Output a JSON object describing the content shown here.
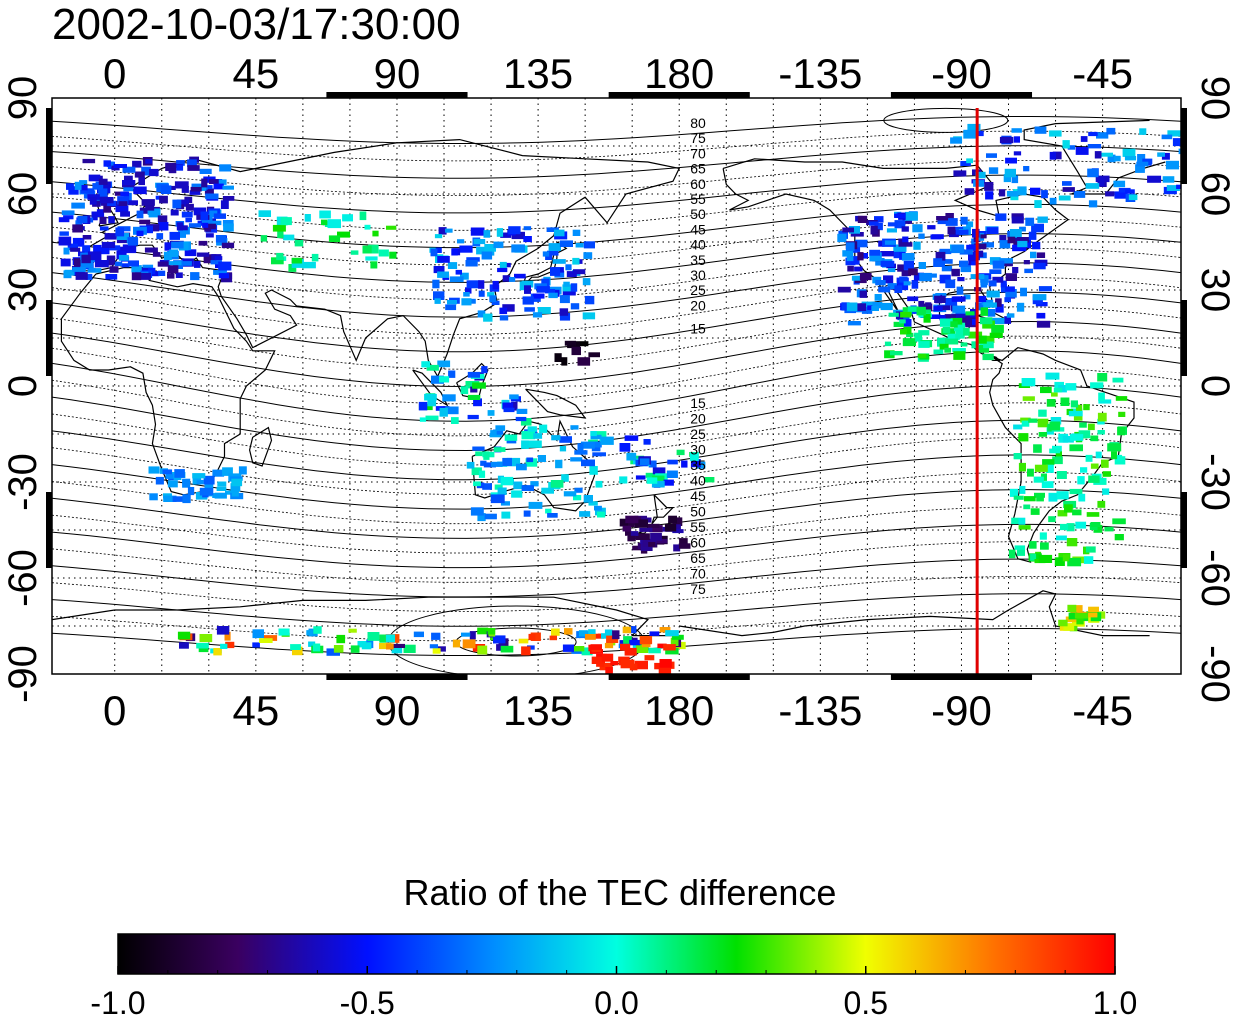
{
  "header": {
    "timestamp": "2002-10-03/17:30:00"
  },
  "map": {
    "lon_ticks": [
      "0",
      "45",
      "90",
      "135",
      "180",
      "-135",
      "-90",
      "-45"
    ],
    "lat_ticks": [
      "90",
      "60",
      "30",
      "0",
      "-30",
      "-60",
      "-90"
    ],
    "marker_longitude": -85,
    "contour_labels_north": [
      "80",
      "75",
      "70",
      "65",
      "60",
      "55",
      "50",
      "45",
      "40",
      "35",
      "30",
      "25",
      "20",
      "15"
    ],
    "contour_labels_south": [
      "15",
      "20",
      "25",
      "30",
      "35",
      "40",
      "45",
      "50",
      "55",
      "60",
      "65",
      "70",
      "75"
    ],
    "marker_color": "#e00000"
  },
  "colorbar": {
    "title": "Ratio of the TEC difference",
    "tick_labels": [
      "-1.0",
      "-0.5",
      "0.0",
      "0.5",
      "1.0"
    ],
    "range": [
      -1.0,
      1.0
    ]
  }
}
